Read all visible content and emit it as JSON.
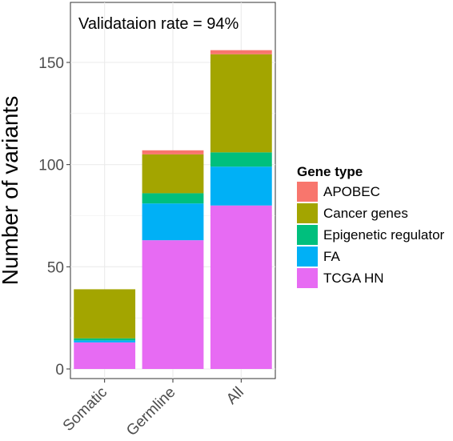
{
  "chart_data": {
    "type": "bar",
    "stacked": true,
    "categories": [
      "Somatic",
      "Germline",
      "All"
    ],
    "series": [
      {
        "name": "TCGA HN",
        "color": "#e76bf3",
        "values": [
          13,
          63,
          80
        ]
      },
      {
        "name": "FA",
        "color": "#00b0f6",
        "values": [
          1,
          18,
          19
        ]
      },
      {
        "name": "Epigenetic regulator",
        "color": "#00bf7d",
        "values": [
          1,
          5,
          7
        ]
      },
      {
        "name": "Cancer genes",
        "color": "#a3a500",
        "values": [
          24,
          19,
          48
        ]
      },
      {
        "name": "APOBEC",
        "color": "#f8766d",
        "values": [
          0,
          2,
          2
        ]
      }
    ],
    "title": "",
    "xlabel": "",
    "ylabel": "Number of variants",
    "ylim": [
      0,
      175
    ],
    "yticks": [
      0,
      50,
      100,
      150
    ],
    "grid": true,
    "annotation": "Validataion rate = 94%",
    "legend": {
      "title": "Gene type",
      "placement": "right",
      "order": [
        "APOBEC",
        "Cancer genes",
        "Epigenetic regulator",
        "FA",
        "TCGA HN"
      ]
    }
  }
}
